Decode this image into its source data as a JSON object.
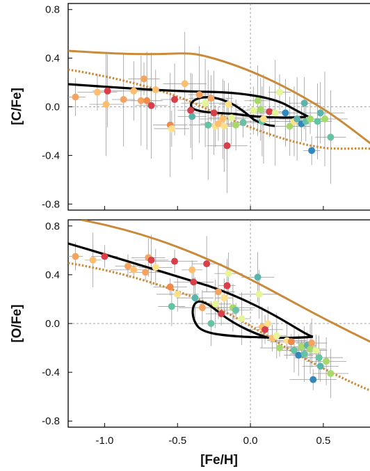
{
  "chart_data": [
    {
      "type": "scatter",
      "title": "",
      "xlabel": "",
      "ylabel": "[C/Fe]",
      "xlim": [
        -1.25,
        0.82
      ],
      "ylim": [
        -0.85,
        0.85
      ],
      "yticks": [
        "0.8",
        "0.4",
        "0.0",
        "-0.4",
        "-0.8"
      ],
      "yticks_values": [
        0.8,
        0.4,
        0.0,
        -0.4,
        -0.8
      ],
      "grid": false,
      "reference_lines": {
        "x": 0.0,
        "y": 0.0
      },
      "colors": {
        "solid_model": "#c98a3a",
        "dotted_model": "#c98a3a",
        "track": "#000000",
        "errorbar": "#999999"
      },
      "points": [
        {
          "x": -1.2,
          "y": 0.08,
          "color": "#f4a460"
        },
        {
          "x": -1.05,
          "y": 0.12,
          "color": "#fdbf6f"
        },
        {
          "x": -0.99,
          "y": 0.02,
          "color": "#fdbf6f"
        },
        {
          "x": -0.98,
          "y": 0.13,
          "color": "#d73f4b"
        },
        {
          "x": -0.87,
          "y": 0.06,
          "color": "#f4a460"
        },
        {
          "x": -0.8,
          "y": 0.13,
          "color": "#fdbf6f"
        },
        {
          "x": -0.75,
          "y": 0.05,
          "color": "#f4a460"
        },
        {
          "x": -0.73,
          "y": 0.23,
          "color": "#f4a460"
        },
        {
          "x": -0.71,
          "y": 0.05,
          "color": "#f08a4b"
        },
        {
          "x": -0.68,
          "y": 0.01,
          "color": "#d73f4b"
        },
        {
          "x": -0.65,
          "y": 0.14,
          "color": "#fdbf6f"
        },
        {
          "x": -0.55,
          "y": -0.15,
          "color": "#f08a4b"
        },
        {
          "x": -0.54,
          "y": -0.18,
          "color": "#fee08b"
        },
        {
          "x": -0.52,
          "y": 0.06,
          "color": "#d73f4b"
        },
        {
          "x": -0.45,
          "y": 0.19,
          "color": "#fdbf6f"
        },
        {
          "x": -0.41,
          "y": -0.03,
          "color": "#d73f4b"
        },
        {
          "x": -0.4,
          "y": -0.08,
          "color": "#5ab4ac"
        },
        {
          "x": -0.35,
          "y": 0.1,
          "color": "#f4a460"
        },
        {
          "x": -0.31,
          "y": 0.03,
          "color": "#e6f598"
        },
        {
          "x": -0.29,
          "y": -0.15,
          "color": "#66c2a5"
        },
        {
          "x": -0.27,
          "y": 0.07,
          "color": "#f4a460"
        },
        {
          "x": -0.25,
          "y": -0.05,
          "color": "#d73f4b"
        },
        {
          "x": -0.24,
          "y": -0.16,
          "color": "#fee08b"
        },
        {
          "x": -0.22,
          "y": -0.14,
          "color": "#fdbf6f"
        },
        {
          "x": -0.19,
          "y": -0.1,
          "color": "#fdbf6f"
        },
        {
          "x": -0.18,
          "y": -0.16,
          "color": "#fee08b"
        },
        {
          "x": -0.16,
          "y": -0.32,
          "color": "#d73f4b"
        },
        {
          "x": -0.15,
          "y": 0.02,
          "color": "#fee08b"
        },
        {
          "x": -0.13,
          "y": -0.09,
          "color": "#e6f598"
        },
        {
          "x": -0.1,
          "y": -0.15,
          "color": "#a6d96a"
        },
        {
          "x": -0.05,
          "y": -0.13,
          "color": "#66c2a5"
        },
        {
          "x": 0.02,
          "y": -0.03,
          "color": "#e6f598"
        },
        {
          "x": 0.05,
          "y": 0.05,
          "color": "#a6d96a"
        },
        {
          "x": 0.07,
          "y": -0.02,
          "color": "#a6d96a"
        },
        {
          "x": 0.08,
          "y": -0.12,
          "color": "#66c2a5"
        },
        {
          "x": 0.09,
          "y": -0.1,
          "color": "#fee08b"
        },
        {
          "x": 0.13,
          "y": -0.04,
          "color": "#d73f4b"
        },
        {
          "x": 0.17,
          "y": -0.05,
          "color": "#e6f598"
        },
        {
          "x": 0.2,
          "y": 0.12,
          "color": "#e6f598"
        },
        {
          "x": 0.24,
          "y": -0.05,
          "color": "#3288bd"
        },
        {
          "x": 0.27,
          "y": -0.16,
          "color": "#a6d96a"
        },
        {
          "x": 0.3,
          "y": -0.12,
          "color": "#fee08b"
        },
        {
          "x": 0.32,
          "y": -0.1,
          "color": "#5ab4ac"
        },
        {
          "x": 0.35,
          "y": -0.14,
          "color": "#3288bd"
        },
        {
          "x": 0.37,
          "y": 0.03,
          "color": "#5ab4ac"
        },
        {
          "x": 0.38,
          "y": -0.12,
          "color": "#66c2a5"
        },
        {
          "x": 0.41,
          "y": -0.1,
          "color": "#a6d96a"
        },
        {
          "x": 0.42,
          "y": -0.36,
          "color": "#3288bd"
        },
        {
          "x": 0.46,
          "y": -0.12,
          "color": "#66c2a5"
        },
        {
          "x": 0.48,
          "y": -0.05,
          "color": "#5ab4ac"
        },
        {
          "x": 0.51,
          "y": -0.1,
          "color": "#a6d96a"
        },
        {
          "x": 0.55,
          "y": -0.25,
          "color": "#66c2a5"
        }
      ]
    },
    {
      "type": "scatter",
      "title": "",
      "xlabel": "[Fe/H]",
      "ylabel": "[O/Fe]",
      "xlim": [
        -1.25,
        0.82
      ],
      "ylim": [
        -0.85,
        0.85
      ],
      "xticks": [
        "-1.0",
        "-0.5",
        "0.0",
        "0.5"
      ],
      "xticks_values": [
        -1.0,
        -0.5,
        0.0,
        0.5
      ],
      "yticks": [
        "0.8",
        "0.4",
        "0.0",
        "-0.4",
        "-0.8"
      ],
      "yticks_values": [
        0.8,
        0.4,
        0.0,
        -0.4,
        -0.8
      ],
      "grid": false,
      "reference_lines": {
        "x": 0.0,
        "y": 0.0
      },
      "points": [
        {
          "x": -1.2,
          "y": 0.55,
          "color": "#f4a460"
        },
        {
          "x": -1.08,
          "y": 0.52,
          "color": "#fdbf6f"
        },
        {
          "x": -1.0,
          "y": 0.55,
          "color": "#d73f4b"
        },
        {
          "x": -0.84,
          "y": 0.47,
          "color": "#f4a460"
        },
        {
          "x": -0.8,
          "y": 0.44,
          "color": "#fdbf6f"
        },
        {
          "x": -0.72,
          "y": 0.42,
          "color": "#f4a460"
        },
        {
          "x": -0.7,
          "y": 0.54,
          "color": "#f4a460"
        },
        {
          "x": -0.68,
          "y": 0.52,
          "color": "#d73f4b"
        },
        {
          "x": -0.65,
          "y": 0.46,
          "color": "#fee08b"
        },
        {
          "x": -0.55,
          "y": 0.3,
          "color": "#f08a4b"
        },
        {
          "x": -0.54,
          "y": 0.14,
          "color": "#66c2a5"
        },
        {
          "x": -0.52,
          "y": 0.51,
          "color": "#d73f4b"
        },
        {
          "x": -0.5,
          "y": 0.24,
          "color": "#fee08b"
        },
        {
          "x": -0.4,
          "y": 0.44,
          "color": "#fdbf6f"
        },
        {
          "x": -0.39,
          "y": 0.34,
          "color": "#d73f4b"
        },
        {
          "x": -0.38,
          "y": 0.21,
          "color": "#5ab4ac"
        },
        {
          "x": -0.33,
          "y": 0.13,
          "color": "#f4a460"
        },
        {
          "x": -0.3,
          "y": 0.49,
          "color": "#d73f4b"
        },
        {
          "x": -0.27,
          "y": 0.0,
          "color": "#66c2a5"
        },
        {
          "x": -0.24,
          "y": 0.16,
          "color": "#e6f598"
        },
        {
          "x": -0.22,
          "y": 0.26,
          "color": "#f4a460"
        },
        {
          "x": -0.2,
          "y": 0.08,
          "color": "#d73f4b"
        },
        {
          "x": -0.18,
          "y": 0.21,
          "color": "#fee08b"
        },
        {
          "x": -0.16,
          "y": 0.31,
          "color": "#d73f4b"
        },
        {
          "x": -0.15,
          "y": 0.41,
          "color": "#e6f598"
        },
        {
          "x": -0.12,
          "y": 0.13,
          "color": "#a6d96a"
        },
        {
          "x": -0.1,
          "y": 0.11,
          "color": "#66c2a5"
        },
        {
          "x": -0.06,
          "y": 0.04,
          "color": "#e6f598"
        },
        {
          "x": 0.05,
          "y": 0.38,
          "color": "#5ab4ac"
        },
        {
          "x": 0.06,
          "y": 0.24,
          "color": "#e6f598"
        },
        {
          "x": 0.08,
          "y": -0.03,
          "color": "#fdbf6f"
        },
        {
          "x": 0.1,
          "y": -0.05,
          "color": "#d73f4b"
        },
        {
          "x": 0.12,
          "y": 0.0,
          "color": "#fee08b"
        },
        {
          "x": 0.15,
          "y": -0.12,
          "color": "#fdbf6f"
        },
        {
          "x": 0.18,
          "y": -0.1,
          "color": "#e6f598"
        },
        {
          "x": 0.2,
          "y": -0.2,
          "color": "#a6d96a"
        },
        {
          "x": 0.25,
          "y": -0.14,
          "color": "#fee08b"
        },
        {
          "x": 0.28,
          "y": -0.15,
          "color": "#f08a4b"
        },
        {
          "x": 0.3,
          "y": -0.22,
          "color": "#66c2a5"
        },
        {
          "x": 0.33,
          "y": -0.26,
          "color": "#3288bd"
        },
        {
          "x": 0.35,
          "y": -0.19,
          "color": "#a6d96a"
        },
        {
          "x": 0.37,
          "y": -0.25,
          "color": "#66c2a5"
        },
        {
          "x": 0.39,
          "y": -0.18,
          "color": "#5ab4ac"
        },
        {
          "x": 0.41,
          "y": -0.21,
          "color": "#a6d96a"
        },
        {
          "x": 0.42,
          "y": -0.16,
          "color": "#f4a460"
        },
        {
          "x": 0.43,
          "y": -0.46,
          "color": "#3288bd"
        },
        {
          "x": 0.45,
          "y": -0.22,
          "color": "#e6f598"
        },
        {
          "x": 0.47,
          "y": -0.28,
          "color": "#66c2a5"
        },
        {
          "x": 0.48,
          "y": -0.35,
          "color": "#5ab4ac"
        },
        {
          "x": 0.52,
          "y": -0.31,
          "color": "#a6d96a"
        },
        {
          "x": 0.55,
          "y": -0.41,
          "color": "#a6d96a"
        }
      ]
    }
  ]
}
